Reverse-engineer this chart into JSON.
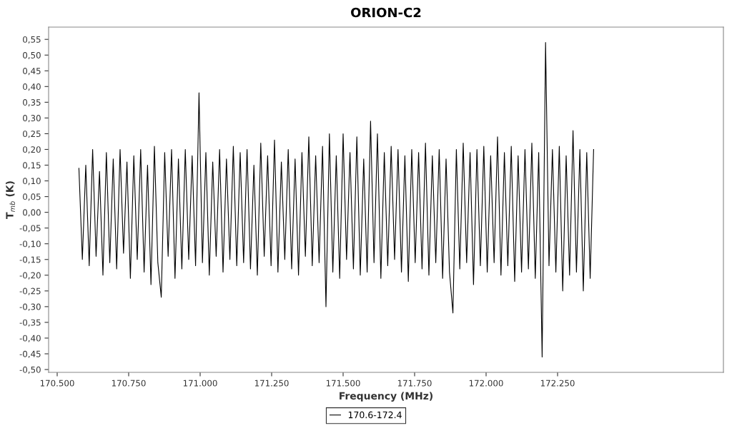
{
  "chart_data": {
    "type": "line",
    "title": "ORION-C2",
    "xlabel": "Frequency (MHz)",
    "ylabel": "T$_{mb}$ (K)",
    "xlim": [
      170470,
      172830
    ],
    "ylim": [
      -0.509,
      0.589
    ],
    "xticks": [
      {
        "value": 170500,
        "label": "170.500"
      },
      {
        "value": 170750,
        "label": "170.750"
      },
      {
        "value": 171000,
        "label": "171.000"
      },
      {
        "value": 171250,
        "label": "171.250"
      },
      {
        "value": 171500,
        "label": "171.500"
      },
      {
        "value": 171750,
        "label": "171.750"
      },
      {
        "value": 172000,
        "label": "172.000"
      },
      {
        "value": 172250,
        "label": "172.250"
      }
    ],
    "yticks": [
      {
        "value": -0.5,
        "label": "-0,50"
      },
      {
        "value": -0.45,
        "label": "-0,45"
      },
      {
        "value": -0.4,
        "label": "-0,40"
      },
      {
        "value": -0.35,
        "label": "-0,35"
      },
      {
        "value": -0.3,
        "label": "-0,30"
      },
      {
        "value": -0.25,
        "label": "-0,25"
      },
      {
        "value": -0.2,
        "label": "-0,20"
      },
      {
        "value": -0.15,
        "label": "-0,15"
      },
      {
        "value": -0.1,
        "label": "-0,10"
      },
      {
        "value": -0.05,
        "label": "-0,05"
      },
      {
        "value": 0.0,
        "label": "0,00"
      },
      {
        "value": 0.05,
        "label": "0,05"
      },
      {
        "value": 0.1,
        "label": "0,10"
      },
      {
        "value": 0.15,
        "label": "0,15"
      },
      {
        "value": 0.2,
        "label": "0,20"
      },
      {
        "value": 0.25,
        "label": "0,25"
      },
      {
        "value": 0.3,
        "label": "0,30"
      },
      {
        "value": 0.35,
        "label": "0,35"
      },
      {
        "value": 0.4,
        "label": "0,40"
      },
      {
        "value": 0.45,
        "label": "0,45"
      },
      {
        "value": 0.5,
        "label": "0,50"
      },
      {
        "value": 0.55,
        "label": "0,55"
      }
    ],
    "x": [
      170576,
      170588,
      170600,
      170612,
      170624,
      170636,
      170648,
      170660,
      170672,
      170684,
      170696,
      170708,
      170720,
      170732,
      170744,
      170756,
      170768,
      170780,
      170792,
      170804,
      170816,
      170828,
      170840,
      170852,
      170864,
      170876,
      170888,
      170900,
      170912,
      170924,
      170936,
      170948,
      170960,
      170972,
      170984,
      170996,
      171008,
      171020,
      171032,
      171044,
      171056,
      171068,
      171080,
      171092,
      171104,
      171116,
      171128,
      171140,
      171152,
      171164,
      171176,
      171188,
      171200,
      171212,
      171224,
      171236,
      171248,
      171260,
      171272,
      171284,
      171296,
      171308,
      171320,
      171332,
      171344,
      171356,
      171368,
      171380,
      171392,
      171404,
      171416,
      171428,
      171440,
      171452,
      171464,
      171476,
      171488,
      171500,
      171512,
      171524,
      171536,
      171548,
      171560,
      171572,
      171584,
      171596,
      171608,
      171620,
      171632,
      171644,
      171656,
      171668,
      171680,
      171692,
      171704,
      171716,
      171728,
      171740,
      171752,
      171764,
      171776,
      171788,
      171800,
      171812,
      171824,
      171836,
      171848,
      171860,
      171872,
      171884,
      171896,
      171908,
      171920,
      171932,
      171944,
      171956,
      171968,
      171980,
      171992,
      172004,
      172016,
      172028,
      172040,
      172052,
      172064,
      172076,
      172088,
      172100,
      172112,
      172124,
      172136,
      172148,
      172160,
      172172,
      172184,
      172196,
      172208,
      172220,
      172232,
      172244,
      172256,
      172268,
      172280,
      172292,
      172304,
      172316,
      172328,
      172340,
      172352,
      172364,
      172376
    ],
    "series": [
      {
        "name": "170.6-172.4",
        "color": "#000000",
        "values": [
          0.14,
          -0.15,
          0.15,
          -0.17,
          0.2,
          -0.14,
          0.13,
          -0.2,
          0.19,
          -0.16,
          0.17,
          -0.18,
          0.2,
          -0.13,
          0.16,
          -0.21,
          0.18,
          -0.15,
          0.2,
          -0.19,
          0.15,
          -0.23,
          0.21,
          -0.16,
          -0.27,
          0.19,
          -0.14,
          0.2,
          -0.21,
          0.17,
          -0.18,
          0.2,
          -0.15,
          0.18,
          -0.17,
          0.38,
          -0.16,
          0.19,
          -0.2,
          0.16,
          -0.14,
          0.2,
          -0.19,
          0.17,
          -0.15,
          0.21,
          -0.17,
          0.19,
          -0.16,
          0.2,
          -0.18,
          0.15,
          -0.2,
          0.22,
          -0.14,
          0.18,
          -0.17,
          0.23,
          -0.19,
          0.16,
          -0.15,
          0.2,
          -0.18,
          0.17,
          -0.2,
          0.19,
          -0.14,
          0.24,
          -0.17,
          0.18,
          -0.16,
          0.21,
          -0.3,
          0.25,
          -0.19,
          0.18,
          -0.21,
          0.25,
          -0.15,
          0.19,
          -0.18,
          0.24,
          -0.2,
          0.17,
          -0.19,
          0.29,
          -0.16,
          0.25,
          -0.21,
          0.19,
          -0.17,
          0.21,
          -0.15,
          0.2,
          -0.19,
          0.18,
          -0.22,
          0.2,
          -0.16,
          0.19,
          -0.18,
          0.22,
          -0.2,
          0.18,
          -0.16,
          0.2,
          -0.21,
          0.17,
          -0.19,
          -0.32,
          0.2,
          -0.18,
          0.22,
          -0.16,
          0.19,
          -0.23,
          0.2,
          -0.17,
          0.21,
          -0.19,
          0.18,
          -0.16,
          0.24,
          -0.2,
          0.19,
          -0.17,
          0.21,
          -0.22,
          0.18,
          -0.19,
          0.2,
          -0.18,
          0.22,
          -0.21,
          0.19,
          -0.46,
          0.54,
          -0.17,
          0.2,
          -0.19,
          0.21,
          -0.25,
          0.18,
          -0.2,
          0.26,
          -0.19,
          0.2,
          -0.25,
          0.19,
          -0.21,
          0.2
        ]
      }
    ],
    "legend": "bottom",
    "grid": false,
    "marker": "none",
    "line_style": "solid"
  }
}
